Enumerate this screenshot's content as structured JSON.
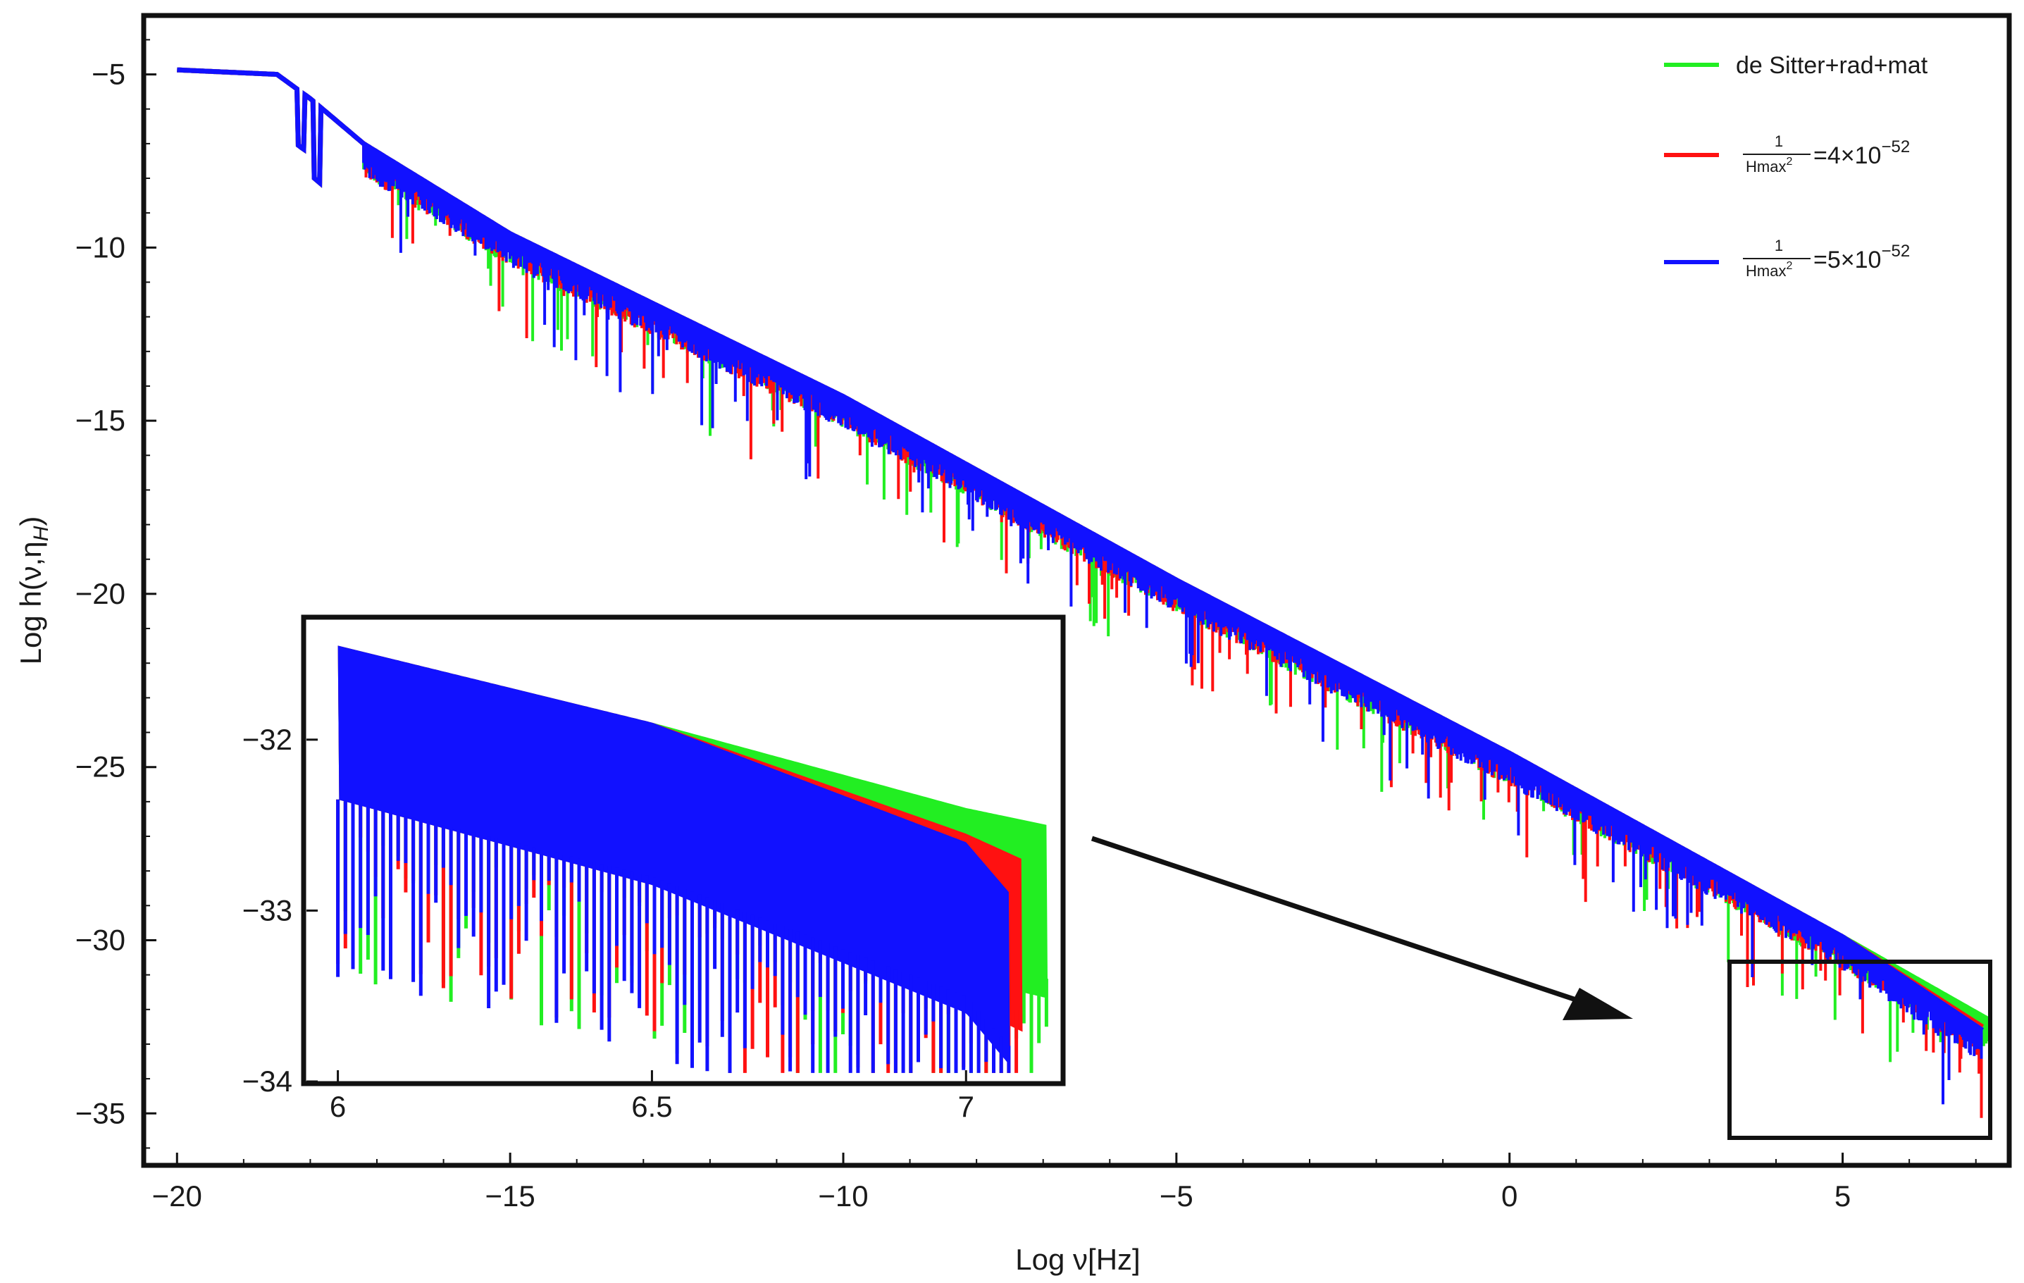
{
  "chart_data": {
    "type": "line",
    "xlabel": "Log ν[Hz]",
    "ylabel": "Log h(ν,η",
    "ylabel_subscript": "H",
    "xlim": [
      -20.5,
      7.5
    ],
    "ylim": [
      -36.5,
      -3.3
    ],
    "xticks": [
      -20,
      -15,
      -10,
      -5,
      0,
      5
    ],
    "yticks": [
      -5,
      -10,
      -15,
      -20,
      -25,
      -30,
      -35
    ],
    "grid": false,
    "legend_position": "top-right",
    "series": [
      {
        "name": "de Sitter+rad+mat",
        "color": "#22ee22",
        "x": [
          -20,
          -18.5,
          -18.0,
          -17.2,
          -15,
          -10,
          -5,
          0,
          5,
          7.2
        ],
        "y": [
          -4.87,
          -5.0,
          -5.7,
          -7.0,
          -9.6,
          -14.3,
          -19.6,
          -24.6,
          -29.9,
          -32.3
        ]
      },
      {
        "name_prefix": "1",
        "name_den": "Hmax",
        "name_den_exp": "2",
        "name_value": "=4×10",
        "name_exp": "−52",
        "color": "#ff1111",
        "x": [
          -20,
          -18.5,
          -18.0,
          -17.2,
          -15,
          -10,
          -5,
          0,
          5,
          7.1
        ],
        "y": [
          -4.87,
          -5.0,
          -5.7,
          -7.0,
          -9.6,
          -14.3,
          -19.6,
          -24.6,
          -29.9,
          -32.5
        ]
      },
      {
        "name_prefix": "1",
        "name_den": "Hmax",
        "name_den_exp": "2",
        "name_value": "=5×10",
        "name_exp": "−52",
        "color": "#1111ff",
        "x": [
          -20,
          -18.5,
          -18.0,
          -17.2,
          -15,
          -10,
          -5,
          0,
          5,
          7.1
        ],
        "y": [
          -4.87,
          -5.0,
          -5.7,
          -7.0,
          -9.6,
          -14.3,
          -19.6,
          -24.6,
          -29.9,
          -32.6
        ]
      }
    ],
    "inset": {
      "xlim": [
        5.95,
        7.15
      ],
      "ylim": [
        -34.0,
        -31.3
      ],
      "xticks": [
        6,
        6.5,
        7
      ],
      "xtick_labels": [
        "6",
        "6.5",
        "7"
      ],
      "yticks": [
        -32,
        -33,
        -34
      ],
      "series": [
        {
          "color": "#22ee22",
          "x": [
            6.0,
            6.5,
            7.0,
            7.13
          ],
          "y": [
            -31.45,
            -31.9,
            -32.4,
            -32.5
          ]
        },
        {
          "color": "#ff1111",
          "x": [
            6.0,
            6.5,
            7.0,
            7.09
          ],
          "y": [
            -31.45,
            -31.9,
            -32.55,
            -32.7
          ]
        },
        {
          "color": "#1111ff",
          "x": [
            6.0,
            6.5,
            7.0,
            7.07
          ],
          "y": [
            -31.45,
            -31.9,
            -32.6,
            -32.9
          ]
        }
      ]
    },
    "zoom_box": {
      "xlim": [
        3.5,
        7.5
      ],
      "ylim": [
        -35.8,
        -30.7
      ]
    }
  }
}
